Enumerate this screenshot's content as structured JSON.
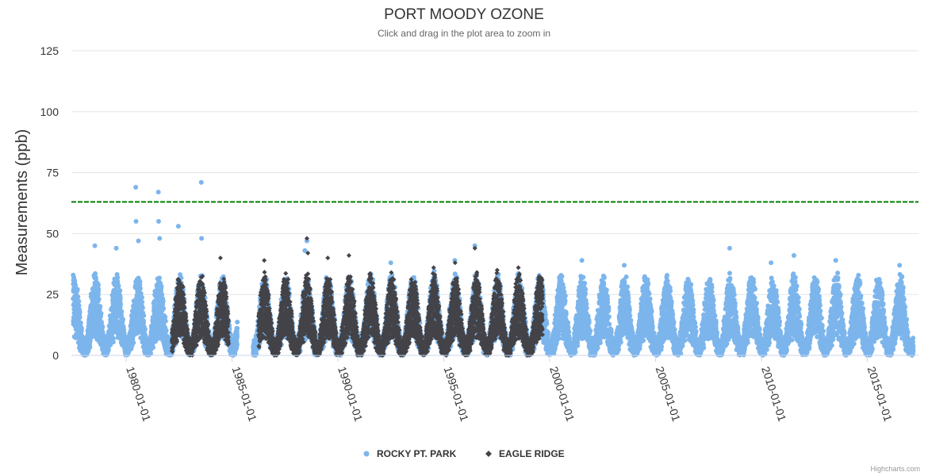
{
  "chart_data": {
    "type": "scatter",
    "title": "PORT MOODY OZONE",
    "subtitle": "Click and drag in the plot area to zoom in",
    "ylabel": "Measurements (ppb)",
    "xlabel": "",
    "ylim": [
      0,
      125
    ],
    "y_ticks": [
      0,
      25,
      50,
      75,
      100,
      125
    ],
    "xlim": [
      "1977-06-01",
      "2017-06-01"
    ],
    "x_ticks": [
      "1980-01-01",
      "1985-01-01",
      "1990-01-01",
      "1995-01-01",
      "2000-01-01",
      "2005-01-01",
      "2010-01-01",
      "2015-01-01"
    ],
    "grid": true,
    "legend_position": "bottom-center",
    "reference_line": {
      "value": 63,
      "color": "#008000",
      "style": "dashed"
    },
    "series": [
      {
        "name": "ROCKY PT. PARK",
        "color": "#7cb5ec",
        "marker": "circle",
        "coverage": [
          [
            "1977-07-01",
            "1985-04-01"
          ],
          [
            "1986-01-01",
            "2017-03-01"
          ]
        ],
        "typical_range": [
          0,
          30
        ],
        "notable_points": [
          {
            "x": "1980-06-15",
            "y": 69
          },
          {
            "x": "1980-06-20",
            "y": 55
          },
          {
            "x": "1981-07-10",
            "y": 67
          },
          {
            "x": "1981-07-15",
            "y": 55
          },
          {
            "x": "1982-06-20",
            "y": 53
          },
          {
            "x": "1983-07-20",
            "y": 71
          },
          {
            "x": "1983-07-25",
            "y": 48
          },
          {
            "x": "1978-07-10",
            "y": 45
          },
          {
            "x": "1979-07-15",
            "y": 44
          },
          {
            "x": "1980-08-01",
            "y": 47
          },
          {
            "x": "1981-08-01",
            "y": 48
          },
          {
            "x": "1988-07-15",
            "y": 47
          },
          {
            "x": "1988-06-10",
            "y": 43
          },
          {
            "x": "1996-06-20",
            "y": 45
          },
          {
            "x": "1992-07-01",
            "y": 38
          },
          {
            "x": "1995-07-10",
            "y": 39
          },
          {
            "x": "2001-07-10",
            "y": 39
          },
          {
            "x": "2003-07-10",
            "y": 37
          },
          {
            "x": "2008-07-01",
            "y": 44
          },
          {
            "x": "2011-07-15",
            "y": 41
          },
          {
            "x": "2013-07-05",
            "y": 39
          },
          {
            "x": "2010-06-15",
            "y": 38
          },
          {
            "x": "2016-07-10",
            "y": 37
          }
        ]
      },
      {
        "name": "EAGLE RIDGE",
        "color": "#434348",
        "marker": "diamond",
        "coverage": [
          [
            "1982-03-01",
            "1984-11-01"
          ],
          [
            "1986-04-01",
            "1999-09-01"
          ]
        ],
        "typical_range": [
          0,
          30
        ],
        "notable_points": [
          {
            "x": "1984-06-15",
            "y": 40
          },
          {
            "x": "1986-07-10",
            "y": 39
          },
          {
            "x": "1988-07-15",
            "y": 48
          },
          {
            "x": "1988-08-01",
            "y": 42
          },
          {
            "x": "1989-07-10",
            "y": 40
          },
          {
            "x": "1990-07-10",
            "y": 41
          },
          {
            "x": "1991-07-15",
            "y": 33
          },
          {
            "x": "1992-07-10",
            "y": 34
          },
          {
            "x": "1994-07-10",
            "y": 36
          },
          {
            "x": "1995-07-15",
            "y": 38
          },
          {
            "x": "1996-06-20",
            "y": 44
          },
          {
            "x": "1997-07-10",
            "y": 35
          },
          {
            "x": "1998-07-10",
            "y": 36
          }
        ]
      }
    ]
  },
  "credit": "Highcharts.com"
}
